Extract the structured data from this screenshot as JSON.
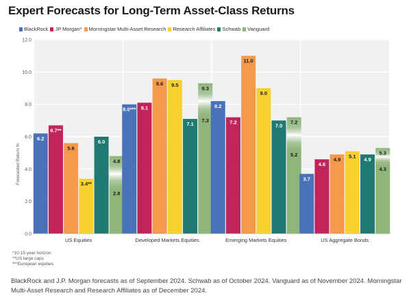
{
  "title": "Expert Forecasts for Long-Term Asset-Class Returns",
  "chart_data": {
    "type": "bar",
    "ylabel": "Forecasted Return %",
    "ylim": [
      0,
      12
    ],
    "yticks": [
      "0.0",
      "2.0",
      "4.0",
      "6.0",
      "8.0",
      "10.0",
      "12.0"
    ],
    "grid": true,
    "legend_position": "top-left",
    "categories": [
      "US Equities",
      "Developed Markets Equities",
      "Emerging Markets Equities",
      "US Aggregate Bonds"
    ],
    "series": [
      {
        "name": "BlackRock",
        "color": "#4a72b8",
        "values": [
          6.2,
          8.0,
          8.2,
          3.7
        ],
        "labels": [
          "6.2",
          "8.0***",
          "8.2",
          "3.7"
        ]
      },
      {
        "name": "JP Morgan*",
        "color": "#c0245a",
        "values": [
          6.7,
          8.1,
          7.2,
          4.6
        ],
        "labels": [
          "6.7**",
          "8.1",
          "7.2",
          "4.6"
        ]
      },
      {
        "name": "Morningstar Multi-Asset Research",
        "color": "#f59a4c",
        "values": [
          5.6,
          9.6,
          11.0,
          4.9
        ],
        "labels": [
          "5.6",
          "9.6",
          "11.0",
          "4.9"
        ]
      },
      {
        "name": "Research Affiliates",
        "color": "#f7d130",
        "values": [
          3.4,
          9.5,
          9.0,
          5.1
        ],
        "labels": [
          "3.4**",
          "9.5",
          "9.0",
          "5.1"
        ]
      },
      {
        "name": "Schwab",
        "color": "#217a72",
        "values": [
          6.0,
          7.1,
          7.0,
          4.9
        ],
        "labels": [
          "6.0",
          "7.1",
          "7.0",
          "4.9"
        ]
      },
      {
        "name": "Vanguard",
        "color": "#8fb57a",
        "ranges": [
          [
            2.8,
            4.8
          ],
          [
            7.3,
            9.3
          ],
          [
            5.2,
            7.2
          ],
          [
            4.3,
            5.3
          ]
        ],
        "labels_high": [
          "4.8",
          "9.3",
          "7.2",
          "5.3"
        ],
        "labels_low": [
          "2.8",
          "7.3",
          "5.2",
          "4.3"
        ]
      }
    ]
  },
  "footnotes": [
    "*10-15 year horizon",
    "**US large caps",
    "***European equities"
  ],
  "source": "BlackRock and J.P. Morgan forecasts as of September 2024. Schwab as of October 2024. Vanguard as of November 2024. Morningstar Multi-Asset Research and Research Affiliates as of December 2024."
}
